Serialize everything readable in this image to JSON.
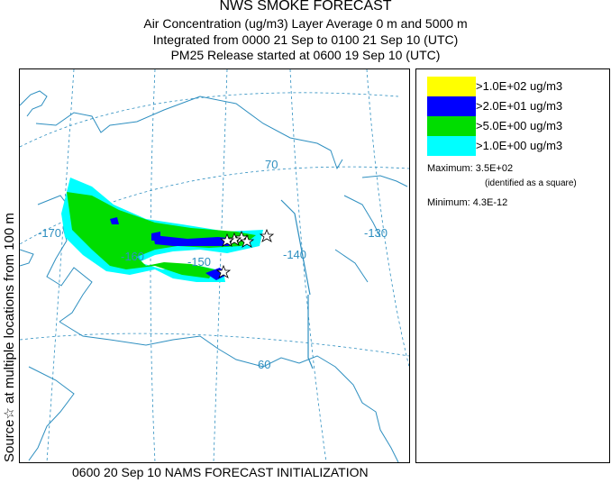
{
  "header": {
    "title": "NWS SMOKE FORECAST",
    "line2": "Air Concentration (ug/m3) Layer Average    0 m and  5000 m",
    "line3": "Integrated from 0000 21 Sep to 0100 21 Sep 10 (UTC)",
    "line4": "PM25 Release started at 0600 19 Sep 10 (UTC)"
  },
  "side_label": "Source☆ at multiple locations from 100 m",
  "footer": "0600 20 Sep 10 NAMS FORECAST INITIALIZATION",
  "legend": {
    "entries": [
      {
        "label": ">1.0E+02 ug/m3",
        "color": "#ffff00"
      },
      {
        "label": ">2.0E+01 ug/m3",
        "color": "#0000ff"
      },
      {
        "label": ">5.0E+00 ug/m3",
        "color": "#00dd00"
      },
      {
        "label": ">1.0E+00 ug/m3",
        "color": "#00ffff"
      }
    ],
    "maximum": "Maximum: 3.5E+02",
    "maximum_note": "(identified as a square)",
    "minimum": "Minimum: 4.3E-12"
  },
  "map": {
    "graticule_labels": [
      "70",
      "-170",
      "-160",
      "-150",
      "-140",
      "-130",
      "60"
    ],
    "colors": {
      "coast": "#2e8fc0",
      "grid": "#2e8fc0"
    }
  }
}
